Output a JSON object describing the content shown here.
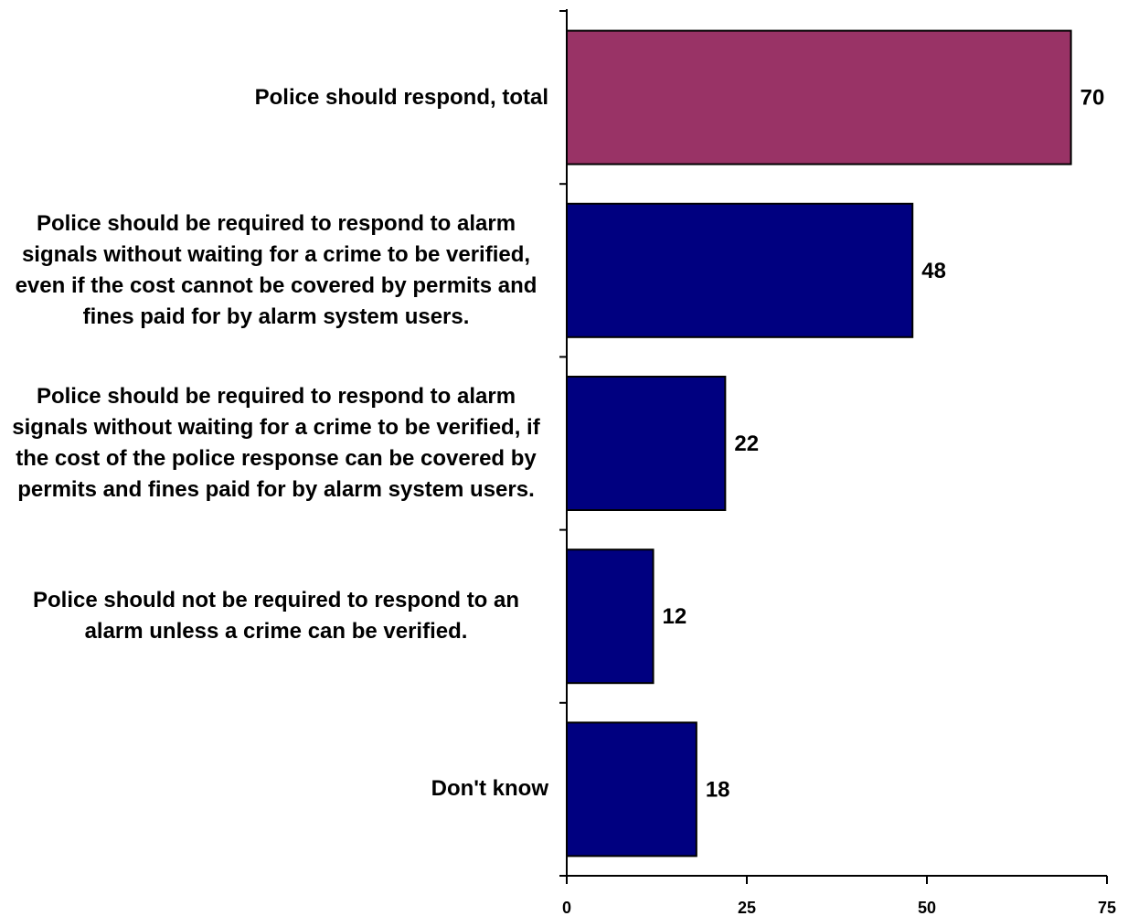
{
  "chart_data": {
    "type": "bar",
    "orientation": "horizontal",
    "categories": [
      "Police should respond, total",
      "Police should be required to respond to alarm signals without waiting for a crime to be verified, even if the cost cannot be covered by permits and fines paid for by alarm system users.",
      "Police should be required to respond to alarm signals without waiting for a crime to be verified, if the cost of the police response can be covered by permits and fines paid for by alarm system users.",
      "Police should not be required to respond to an alarm unless a crime can be verified.",
      "Don't know"
    ],
    "values": [
      70,
      48,
      22,
      12,
      18
    ],
    "data_labels": [
      "70",
      "48",
      "22",
      "12",
      "18"
    ],
    "bar_colors": [
      "#993366",
      "#000080",
      "#000080",
      "#000080",
      "#000080"
    ],
    "xlim": [
      0,
      75
    ],
    "xticks": [
      0,
      25,
      50,
      75
    ],
    "xtick_labels": [
      "0",
      "25",
      "50",
      "75"
    ],
    "grid": false,
    "legend": "none",
    "title": "",
    "xlabel": "",
    "ylabel": ""
  }
}
